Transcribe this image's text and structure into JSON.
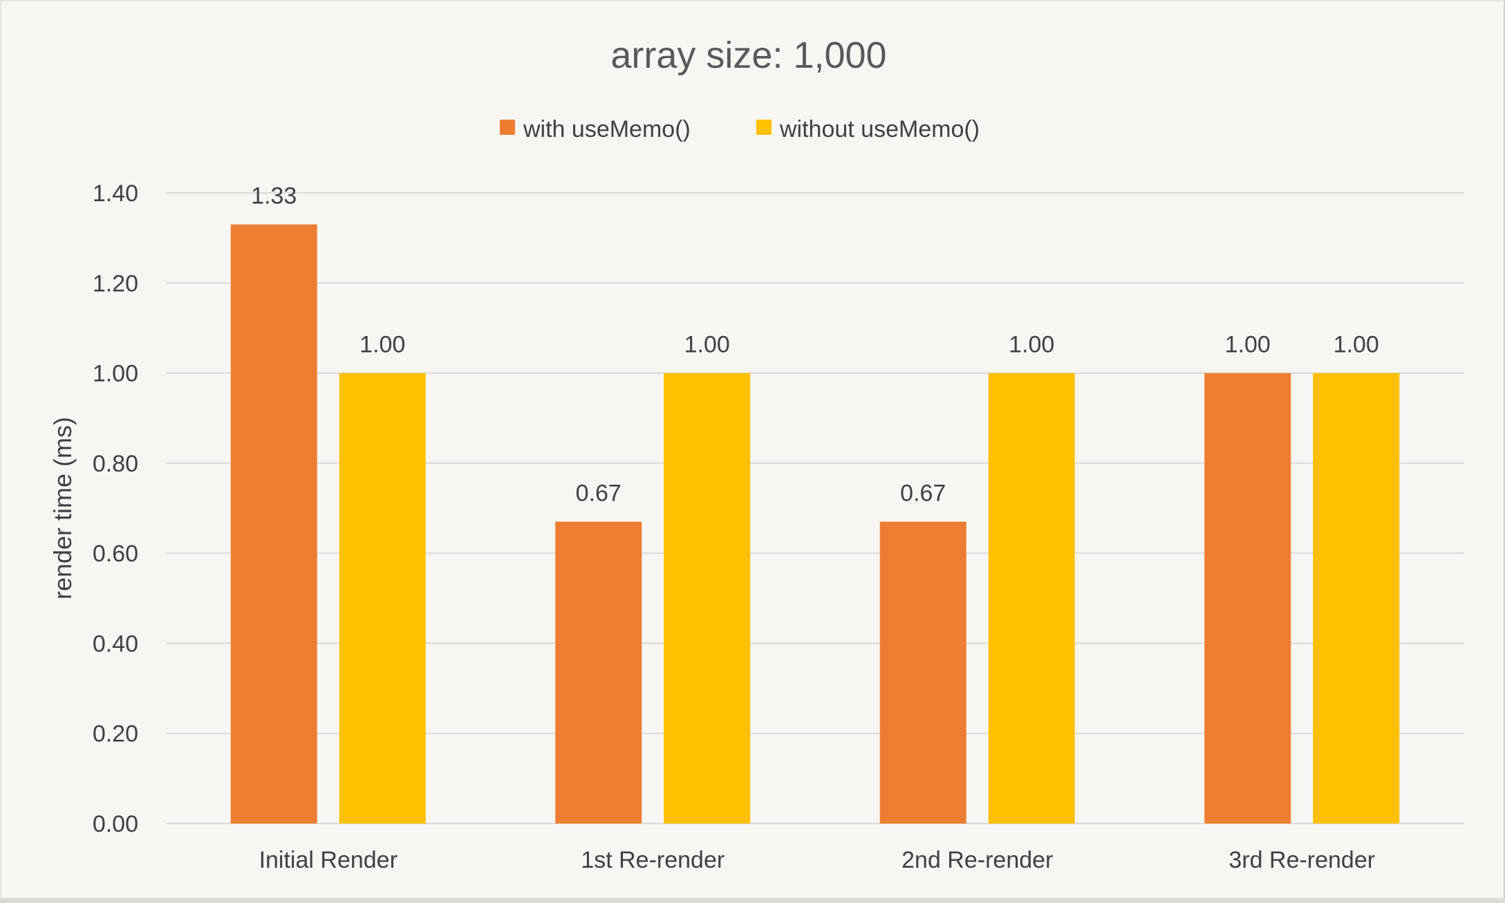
{
  "chart_data": {
    "type": "bar",
    "title": "array size: 1,000",
    "xlabel": "",
    "ylabel": "render time (ms)",
    "categories": [
      "Initial Render",
      "1st Re-render",
      "2nd Re-render",
      "3rd Re-render"
    ],
    "series": [
      {
        "name": "with useMemo()",
        "color": "#ed7d31",
        "values": [
          1.33,
          0.67,
          0.67,
          1.0
        ],
        "labels": [
          "1.33",
          "0.67",
          "0.67",
          "1.00"
        ]
      },
      {
        "name": "without useMemo()",
        "color": "#ffc000",
        "values": [
          1.0,
          1.0,
          1.0,
          1.0
        ],
        "labels": [
          "1.00",
          "1.00",
          "1.00",
          "1.00"
        ]
      }
    ],
    "ylim": [
      0,
      1.4
    ],
    "yticks": [
      "0.00",
      "0.20",
      "0.40",
      "0.60",
      "0.80",
      "1.00",
      "1.20",
      "1.40"
    ],
    "ytick_values": [
      0,
      0.2,
      0.4,
      0.6,
      0.8,
      1.0,
      1.2,
      1.4
    ],
    "grid": true,
    "legend_position": "top-center",
    "data_labels": true
  }
}
